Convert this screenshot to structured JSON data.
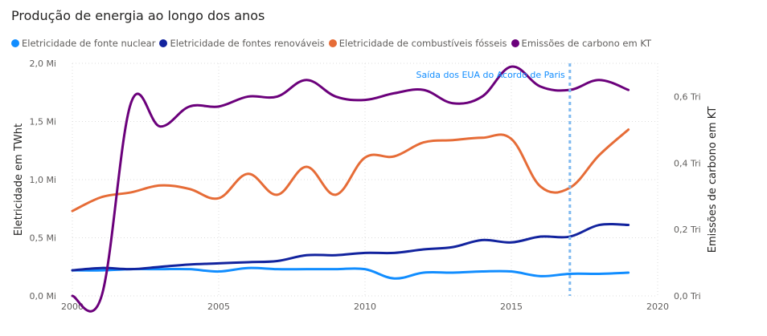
{
  "chart_data": {
    "type": "line",
    "title": "Produção de energia ao longo dos anos",
    "ylabel_left": "Eletricidade em TWht",
    "ylabel_right": "Emissões de carbono em KT",
    "x_ticks": [
      "2000",
      "2005",
      "2010",
      "2015",
      "2020"
    ],
    "y_left_ticks": [
      "2,0 Mi",
      "1,5 Mi",
      "1,0 Mi",
      "0,5 Mi",
      "0,0 Mi"
    ],
    "y_right_ticks": [
      "0,6 Tri",
      "0,4 Tri",
      "0,2 Tri",
      "0,0 Tri"
    ],
    "xlim": [
      2000,
      2020
    ],
    "ylim_left": [
      0,
      2.0
    ],
    "ylim_right": [
      0,
      0.7
    ],
    "grid": true,
    "legend_position": "top-left",
    "x": [
      2000,
      2001,
      2002,
      2003,
      2004,
      2005,
      2006,
      2007,
      2008,
      2009,
      2010,
      2011,
      2012,
      2013,
      2014,
      2015,
      2016,
      2017,
      2018,
      2019
    ],
    "series": [
      {
        "name": "Eletricidade de fonte nuclear",
        "axis": "left",
        "color": "#118DFF",
        "values": [
          0.22,
          0.22,
          0.23,
          0.23,
          0.23,
          0.21,
          0.24,
          0.23,
          0.23,
          0.23,
          0.23,
          0.15,
          0.2,
          0.2,
          0.21,
          0.21,
          0.17,
          0.19,
          0.19,
          0.2
        ]
      },
      {
        "name": "Eletricidade de fontes renováveis",
        "axis": "left",
        "color": "#12239E",
        "values": [
          0.22,
          0.24,
          0.23,
          0.25,
          0.27,
          0.28,
          0.29,
          0.3,
          0.35,
          0.35,
          0.37,
          0.37,
          0.4,
          0.42,
          0.48,
          0.46,
          0.51,
          0.51,
          0.61,
          0.61
        ]
      },
      {
        "name": "Eletricidade de combustíveis fósseis",
        "axis": "left",
        "color": "#E66C37",
        "values": [
          0.73,
          0.85,
          0.89,
          0.95,
          0.92,
          0.84,
          1.05,
          0.87,
          1.11,
          0.87,
          1.19,
          1.2,
          1.32,
          1.34,
          1.36,
          1.35,
          0.94,
          0.93,
          1.21,
          1.43
        ]
      },
      {
        "name": "Emissões de carbono em KT",
        "axis": "right",
        "color": "#6B007B",
        "values": [
          0.0,
          0.0,
          0.58,
          0.51,
          0.57,
          0.57,
          0.6,
          0.6,
          0.65,
          0.6,
          0.59,
          0.61,
          0.62,
          0.58,
          0.6,
          0.69,
          0.63,
          0.62,
          0.65,
          0.62
        ]
      }
    ],
    "annotations": [
      {
        "label": "Saída dos EUA do Acordo de Paris",
        "x": 2017,
        "color": "#118DFF"
      }
    ]
  }
}
